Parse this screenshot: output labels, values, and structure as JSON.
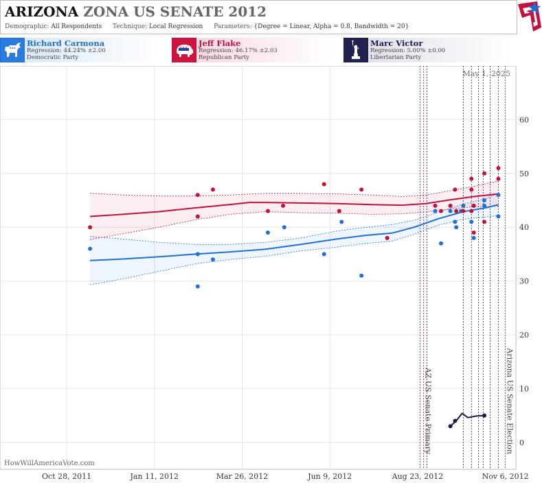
{
  "header": {
    "state": "ARIZONA",
    "race": "ZONA US SENATE 2012",
    "demographic_label": "Demographic:",
    "demographic_value": "All Respondents",
    "technique_label": "Technique:",
    "technique_value": "Local Regression",
    "parameters_label": "Parameters:",
    "parameters_value": "{Degree = Linear, Alpha = 0.8, Bandwidth = 20}"
  },
  "logo_icon": "star-flag-logo",
  "candidates": [
    {
      "name": "Richard Carmona",
      "regression": "Regression: 44.24% ±2.00",
      "party": "Democratic Party",
      "icon": "donkey-icon",
      "color": "#1e6fd6"
    },
    {
      "name": "Jeff Flake",
      "regression": "Regression: 46.17% ±2.03",
      "party": "Republican Party",
      "icon": "elephant-icon",
      "color": "#c4103c"
    },
    {
      "name": "Marc Victor",
      "regression": "Regression: 5.00% ±0.00",
      "party": "Libertarian Party",
      "icon": "statue-of-liberty-icon",
      "color": "#1a1a4a"
    }
  ],
  "chart_data": {
    "type": "line",
    "date_stamp": "May 1, 2025",
    "watermark": "HowWillAmericaVote.com",
    "x_ticks": [
      "Oct 28, 2011",
      "Jan 11, 2012",
      "Mar 26, 2012",
      "Jun 9, 2012",
      "Aug 23, 2012",
      "Nov 6, 2012"
    ],
    "x_domain": [
      "2011-09-01",
      "2012-11-15"
    ],
    "ylim": [
      -5,
      70
    ],
    "y_ticks": [
      0,
      10,
      20,
      30,
      40,
      50,
      60
    ],
    "grid": true,
    "events": [
      {
        "label": "AZ US Senate Primary",
        "date": "2012-08-28"
      },
      {
        "label": "Arizona US Senate Election",
        "date": "2012-11-06"
      }
    ],
    "poll_dates": [
      "2012-08-25",
      "2012-08-31",
      "2012-10-01",
      "2012-10-08",
      "2012-10-14",
      "2012-10-18",
      "2012-10-24",
      "2012-10-31"
    ],
    "series": [
      {
        "name": "Richard Carmona",
        "color": "#1e6fd6",
        "points": [
          {
            "x": "2011-11-17",
            "y": 36
          },
          {
            "x": "2012-02-17",
            "y": 29
          },
          {
            "x": "2012-02-17",
            "y": 35
          },
          {
            "x": "2012-03-01",
            "y": 34
          },
          {
            "x": "2012-04-17",
            "y": 39
          },
          {
            "x": "2012-05-01",
            "y": 40
          },
          {
            "x": "2012-06-04",
            "y": 35
          },
          {
            "x": "2012-06-19",
            "y": 41
          },
          {
            "x": "2012-07-06",
            "y": 31
          },
          {
            "x": "2012-07-28",
            "y": 38
          },
          {
            "x": "2012-09-07",
            "y": 43
          },
          {
            "x": "2012-09-12",
            "y": 37
          },
          {
            "x": "2012-09-20",
            "y": 43
          },
          {
            "x": "2012-09-24",
            "y": 41
          },
          {
            "x": "2012-09-25",
            "y": 40
          },
          {
            "x": "2012-09-29",
            "y": 43
          },
          {
            "x": "2012-10-01",
            "y": 44
          },
          {
            "x": "2012-10-08",
            "y": 41
          },
          {
            "x": "2012-10-10",
            "y": 38
          },
          {
            "x": "2012-10-10",
            "y": 44
          },
          {
            "x": "2012-10-19",
            "y": 44
          },
          {
            "x": "2012-10-19",
            "y": 45
          },
          {
            "x": "2012-10-31",
            "y": 42
          },
          {
            "x": "2012-10-31",
            "y": 46
          }
        ],
        "trend": [
          {
            "x": "2011-11-17",
            "y": 33.8
          },
          {
            "x": "2011-12-15",
            "y": 34.1
          },
          {
            "x": "2012-01-15",
            "y": 34.5
          },
          {
            "x": "2012-02-15",
            "y": 35.0
          },
          {
            "x": "2012-03-15",
            "y": 35.4
          },
          {
            "x": "2012-04-15",
            "y": 35.9
          },
          {
            "x": "2012-05-15",
            "y": 36.8
          },
          {
            "x": "2012-06-15",
            "y": 37.8
          },
          {
            "x": "2012-07-10",
            "y": 38.5
          },
          {
            "x": "2012-08-01",
            "y": 38.9
          },
          {
            "x": "2012-08-20",
            "y": 40.0
          },
          {
            "x": "2012-09-10",
            "y": 41.6
          },
          {
            "x": "2012-10-01",
            "y": 42.9
          },
          {
            "x": "2012-10-20",
            "y": 43.6
          },
          {
            "x": "2012-10-31",
            "y": 44.2
          }
        ],
        "band_upper": [
          {
            "x": "2011-11-17",
            "y": 38.3
          },
          {
            "x": "2011-12-15",
            "y": 37.8
          },
          {
            "x": "2012-01-15",
            "y": 37.2
          },
          {
            "x": "2012-02-15",
            "y": 36.8
          },
          {
            "x": "2012-03-15",
            "y": 36.8
          },
          {
            "x": "2012-04-15",
            "y": 37.2
          },
          {
            "x": "2012-05-15",
            "y": 38.0
          },
          {
            "x": "2012-06-15",
            "y": 39.3
          },
          {
            "x": "2012-07-10",
            "y": 40.0
          },
          {
            "x": "2012-08-01",
            "y": 40.5
          },
          {
            "x": "2012-08-20",
            "y": 41.3
          },
          {
            "x": "2012-09-10",
            "y": 42.8
          },
          {
            "x": "2012-10-01",
            "y": 44.3
          },
          {
            "x": "2012-10-20",
            "y": 45.3
          },
          {
            "x": "2012-10-31",
            "y": 46.3
          }
        ],
        "band_lower": [
          {
            "x": "2011-11-17",
            "y": 29.3
          },
          {
            "x": "2011-12-15",
            "y": 30.4
          },
          {
            "x": "2012-01-15",
            "y": 31.8
          },
          {
            "x": "2012-02-15",
            "y": 33.2
          },
          {
            "x": "2012-03-15",
            "y": 34.0
          },
          {
            "x": "2012-04-15",
            "y": 34.6
          },
          {
            "x": "2012-05-15",
            "y": 35.6
          },
          {
            "x": "2012-06-15",
            "y": 36.3
          },
          {
            "x": "2012-07-10",
            "y": 37.0
          },
          {
            "x": "2012-08-01",
            "y": 37.4
          },
          {
            "x": "2012-08-20",
            "y": 38.7
          },
          {
            "x": "2012-09-10",
            "y": 40.4
          },
          {
            "x": "2012-10-01",
            "y": 41.5
          },
          {
            "x": "2012-10-20",
            "y": 41.9
          },
          {
            "x": "2012-10-31",
            "y": 42.2
          }
        ]
      },
      {
        "name": "Jeff Flake",
        "color": "#c4103c",
        "points": [
          {
            "x": "2011-11-17",
            "y": 40
          },
          {
            "x": "2012-02-17",
            "y": 46
          },
          {
            "x": "2012-02-17",
            "y": 42
          },
          {
            "x": "2012-03-01",
            "y": 47
          },
          {
            "x": "2012-04-17",
            "y": 43
          },
          {
            "x": "2012-04-30",
            "y": 44
          },
          {
            "x": "2012-06-04",
            "y": 48
          },
          {
            "x": "2012-06-17",
            "y": 43
          },
          {
            "x": "2012-07-06",
            "y": 47
          },
          {
            "x": "2012-07-28",
            "y": 38
          },
          {
            "x": "2012-09-07",
            "y": 44
          },
          {
            "x": "2012-09-12",
            "y": 43
          },
          {
            "x": "2012-09-20",
            "y": 44
          },
          {
            "x": "2012-09-24",
            "y": 47
          },
          {
            "x": "2012-09-25",
            "y": 43
          },
          {
            "x": "2012-10-01",
            "y": 43
          },
          {
            "x": "2012-10-08",
            "y": 43
          },
          {
            "x": "2012-10-08",
            "y": 49
          },
          {
            "x": "2012-10-08",
            "y": 47
          },
          {
            "x": "2012-10-10",
            "y": 39
          },
          {
            "x": "2012-10-10",
            "y": 44
          },
          {
            "x": "2012-10-19",
            "y": 50
          },
          {
            "x": "2012-10-19",
            "y": 41
          },
          {
            "x": "2012-10-31",
            "y": 51
          },
          {
            "x": "2012-10-31",
            "y": 49
          }
        ],
        "trend": [
          {
            "x": "2011-11-17",
            "y": 42.0
          },
          {
            "x": "2011-12-15",
            "y": 42.4
          },
          {
            "x": "2012-01-15",
            "y": 42.9
          },
          {
            "x": "2012-02-15",
            "y": 43.6
          },
          {
            "x": "2012-03-15",
            "y": 44.2
          },
          {
            "x": "2012-04-01",
            "y": 44.6
          },
          {
            "x": "2012-04-15",
            "y": 44.6
          },
          {
            "x": "2012-05-15",
            "y": 44.5
          },
          {
            "x": "2012-06-15",
            "y": 44.4
          },
          {
            "x": "2012-07-15",
            "y": 44.2
          },
          {
            "x": "2012-08-10",
            "y": 44.1
          },
          {
            "x": "2012-08-30",
            "y": 44.4
          },
          {
            "x": "2012-09-20",
            "y": 45.1
          },
          {
            "x": "2012-10-10",
            "y": 45.7
          },
          {
            "x": "2012-10-31",
            "y": 46.2
          }
        ],
        "band_upper": [
          {
            "x": "2011-11-17",
            "y": 46.3
          },
          {
            "x": "2011-12-15",
            "y": 46.0
          },
          {
            "x": "2012-01-15",
            "y": 45.8
          },
          {
            "x": "2012-02-15",
            "y": 45.8
          },
          {
            "x": "2012-03-15",
            "y": 46.0
          },
          {
            "x": "2012-04-15",
            "y": 46.3
          },
          {
            "x": "2012-05-15",
            "y": 46.3
          },
          {
            "x": "2012-06-15",
            "y": 46.2
          },
          {
            "x": "2012-07-15",
            "y": 46.0
          },
          {
            "x": "2012-08-10",
            "y": 45.7
          },
          {
            "x": "2012-08-30",
            "y": 46.0
          },
          {
            "x": "2012-09-20",
            "y": 46.8
          },
          {
            "x": "2012-10-10",
            "y": 47.6
          },
          {
            "x": "2012-10-31",
            "y": 48.6
          }
        ],
        "band_lower": [
          {
            "x": "2011-11-17",
            "y": 37.7
          },
          {
            "x": "2011-12-15",
            "y": 38.8
          },
          {
            "x": "2012-01-15",
            "y": 40.0
          },
          {
            "x": "2012-02-15",
            "y": 41.4
          },
          {
            "x": "2012-03-15",
            "y": 42.4
          },
          {
            "x": "2012-04-15",
            "y": 42.9
          },
          {
            "x": "2012-05-15",
            "y": 42.7
          },
          {
            "x": "2012-06-15",
            "y": 42.6
          },
          {
            "x": "2012-07-15",
            "y": 42.4
          },
          {
            "x": "2012-08-10",
            "y": 42.5
          },
          {
            "x": "2012-08-30",
            "y": 42.8
          },
          {
            "x": "2012-09-20",
            "y": 43.4
          },
          {
            "x": "2012-10-10",
            "y": 43.8
          },
          {
            "x": "2012-10-31",
            "y": 43.9
          }
        ]
      },
      {
        "name": "Marc Victor",
        "color": "#1a1a4a",
        "points": [
          {
            "x": "2012-09-20",
            "y": 3
          },
          {
            "x": "2012-09-24",
            "y": 4
          },
          {
            "x": "2012-10-19",
            "y": 5
          }
        ],
        "trend": [
          {
            "x": "2012-09-20",
            "y": 3.0
          },
          {
            "x": "2012-09-25",
            "y": 4.0
          },
          {
            "x": "2012-09-30",
            "y": 5.4
          },
          {
            "x": "2012-10-05",
            "y": 4.6
          },
          {
            "x": "2012-10-12",
            "y": 4.9
          },
          {
            "x": "2012-10-19",
            "y": 5.0
          }
        ]
      }
    ]
  }
}
